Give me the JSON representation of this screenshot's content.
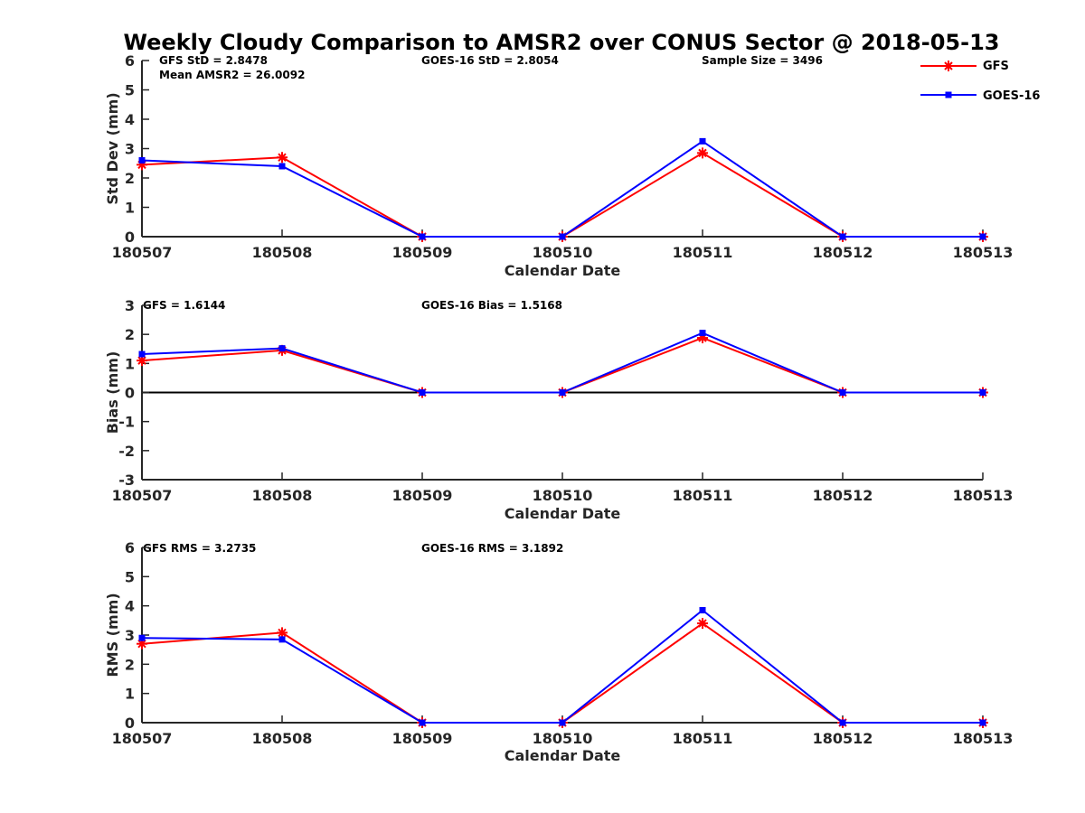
{
  "title": "Weekly Cloudy Comparison to AMSR2 over CONUS Sector @ 2018-05-13",
  "legend": {
    "placement": "top-right",
    "entries": [
      "GFS",
      "GOES-16"
    ]
  },
  "colors": {
    "GFS": "#ff0000",
    "GOES-16": "#0000ff",
    "axis": "#262626",
    "zero_line": "#000000"
  },
  "chart_data": [
    {
      "type": "line",
      "categories": [
        "180507",
        "180508",
        "180509",
        "180510",
        "180511",
        "180512",
        "180513"
      ],
      "xlabel": "Calendar Date",
      "ylabel": "Std Dev (mm)",
      "ylim": [
        0,
        6
      ],
      "yticks": [
        "0",
        "1",
        "2",
        "3",
        "4",
        "5",
        "6"
      ],
      "grid": false,
      "zero_line": false,
      "annotations": [
        "GFS StD = 2.8478",
        "Mean AMSR2 = 26.0092",
        "GOES-16 StD = 2.8054",
        "Sample Size = 3496"
      ],
      "series": [
        {
          "name": "GFS",
          "marker": "asterisk",
          "values": [
            2.45,
            2.7,
            0,
            0,
            2.85,
            0,
            0
          ]
        },
        {
          "name": "GOES-16",
          "marker": "square",
          "values": [
            2.6,
            2.4,
            0,
            0,
            3.25,
            0,
            0
          ]
        }
      ]
    },
    {
      "type": "line",
      "categories": [
        "180507",
        "180508",
        "180509",
        "180510",
        "180511",
        "180512",
        "180513"
      ],
      "xlabel": "Calendar Date",
      "ylabel": "Bias (mm)",
      "ylim": [
        -3,
        3
      ],
      "yticks": [
        "-3",
        "-2",
        "-1",
        "0",
        "1",
        "2",
        "3"
      ],
      "grid": false,
      "zero_line": true,
      "annotations": [
        "GFS = 1.6144",
        "GOES-16 Bias  = 1.5168"
      ],
      "series": [
        {
          "name": "GFS",
          "marker": "asterisk",
          "values": [
            1.1,
            1.45,
            0,
            0,
            1.88,
            0,
            0
          ]
        },
        {
          "name": "GOES-16",
          "marker": "square",
          "values": [
            1.32,
            1.52,
            0,
            0,
            2.05,
            0,
            0
          ]
        }
      ]
    },
    {
      "type": "line",
      "categories": [
        "180507",
        "180508",
        "180509",
        "180510",
        "180511",
        "180512",
        "180513"
      ],
      "xlabel": "Calendar Date",
      "ylabel": "RMS (mm)",
      "ylim": [
        0,
        6
      ],
      "yticks": [
        "0",
        "1",
        "2",
        "3",
        "4",
        "5",
        "6"
      ],
      "grid": false,
      "zero_line": false,
      "annotations": [
        "GFS RMS = 3.2735",
        "GOES-16 RMS = 3.1892"
      ],
      "series": [
        {
          "name": "GFS",
          "marker": "asterisk",
          "values": [
            2.7,
            3.08,
            0,
            0,
            3.4,
            0,
            0
          ]
        },
        {
          "name": "GOES-16",
          "marker": "square",
          "values": [
            2.9,
            2.85,
            0,
            0,
            3.85,
            0,
            0
          ]
        }
      ]
    }
  ]
}
